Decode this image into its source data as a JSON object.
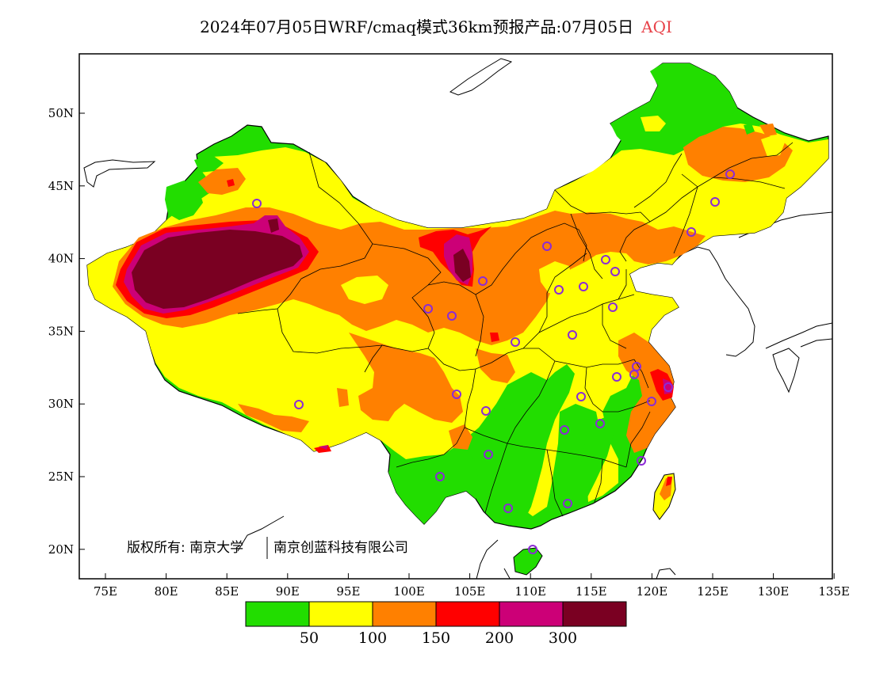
{
  "title": {
    "main": "2024年07月05日WRF/cmaq模式36km预报产品:07月05日",
    "accent": "AQI",
    "accent_color": "#e8434a"
  },
  "axes": {
    "x_ticks": [
      "75E",
      "80E",
      "85E",
      "90E",
      "95E",
      "100E",
      "105E",
      "110E",
      "115E",
      "120E",
      "125E",
      "130E",
      "135E"
    ],
    "y_ticks": [
      "50N",
      "45N",
      "40N",
      "35N",
      "30N",
      "25N",
      "20N"
    ]
  },
  "copyright": {
    "left": "版权所有: 南京大学",
    "right": "南京创蓝科技有限公司"
  },
  "legend": {
    "colors": [
      "#22dd00",
      "#ffff00",
      "#ff8000",
      "#ff0000",
      "#cc0077",
      "#7a0022"
    ],
    "labels": [
      "50",
      "100",
      "150",
      "200",
      "300"
    ]
  },
  "colors": {
    "green": "#22dd00",
    "yellow": "#ffff00",
    "orange": "#ff8000",
    "red": "#ff0000",
    "magenta": "#cc0077",
    "maroon": "#7a0022",
    "station": "#8b2bd6"
  }
}
